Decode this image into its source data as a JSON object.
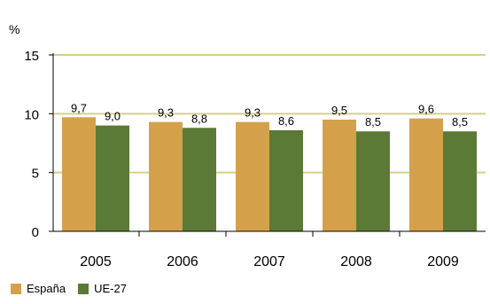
{
  "chart_data": {
    "type": "bar",
    "ylabel": "%",
    "categories": [
      "2005",
      "2006",
      "2007",
      "2008",
      "2009"
    ],
    "series": [
      {
        "name": "España",
        "values": [
          9.7,
          9.3,
          9.3,
          9.5,
          9.6
        ],
        "labels": [
          "9,7",
          "9,3",
          "9,3",
          "9,5",
          "9,6"
        ],
        "color": "#D4A14A"
      },
      {
        "name": "UE-27",
        "values": [
          9.0,
          8.8,
          8.6,
          8.5,
          8.5
        ],
        "labels": [
          "9,0",
          "8,8",
          "8,6",
          "8,5",
          "8,5"
        ],
        "color": "#5B7A36"
      }
    ],
    "yticks": [
      "0",
      "5",
      "10",
      "15"
    ],
    "ylim": [
      0,
      15
    ],
    "grid": true,
    "gridColor": "#D6D08A",
    "legend_position": "bottom-left"
  }
}
